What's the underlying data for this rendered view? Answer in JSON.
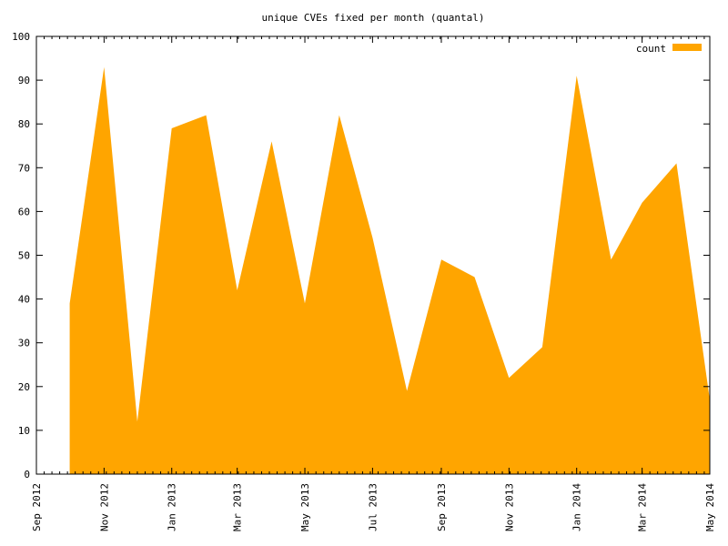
{
  "chart_data": {
    "type": "area",
    "title": "unique CVEs fixed per month (quantal)",
    "xlabel": "",
    "ylabel": "",
    "ylim": [
      0,
      100
    ],
    "yticks": [
      0,
      10,
      20,
      30,
      40,
      50,
      60,
      70,
      80,
      90,
      100
    ],
    "xlim": [
      "2012-09-01",
      "2014-05-01"
    ],
    "xticks": [
      {
        "date": "2012-09-01",
        "label": "Sep 2012"
      },
      {
        "date": "2012-11-01",
        "label": "Nov 2012"
      },
      {
        "date": "2013-01-01",
        "label": "Jan 2013"
      },
      {
        "date": "2013-03-01",
        "label": "Mar 2013"
      },
      {
        "date": "2013-05-01",
        "label": "May 2013"
      },
      {
        "date": "2013-07-01",
        "label": "Jul 2013"
      },
      {
        "date": "2013-09-01",
        "label": "Sep 2013"
      },
      {
        "date": "2013-11-01",
        "label": "Nov 2013"
      },
      {
        "date": "2014-01-01",
        "label": "Jan 2014"
      },
      {
        "date": "2014-03-01",
        "label": "Mar 2014"
      },
      {
        "date": "2014-05-01",
        "label": "May 2014"
      }
    ],
    "grid": false,
    "legend_position": "top-right",
    "series": [
      {
        "name": "count",
        "color": "#ffa500",
        "x": [
          "2012-10-01",
          "2012-11-01",
          "2012-12-01",
          "2013-01-01",
          "2013-02-01",
          "2013-03-01",
          "2013-04-01",
          "2013-05-01",
          "2013-06-01",
          "2013-07-01",
          "2013-08-01",
          "2013-09-01",
          "2013-10-01",
          "2013-11-01",
          "2013-12-01",
          "2014-01-01",
          "2014-02-01",
          "2014-03-01",
          "2014-04-01",
          "2014-05-01"
        ],
        "values": [
          39,
          93,
          12,
          79,
          82,
          42,
          76,
          39,
          82,
          54,
          19,
          49,
          45,
          22,
          29,
          91,
          49,
          62,
          71,
          17
        ]
      }
    ]
  }
}
